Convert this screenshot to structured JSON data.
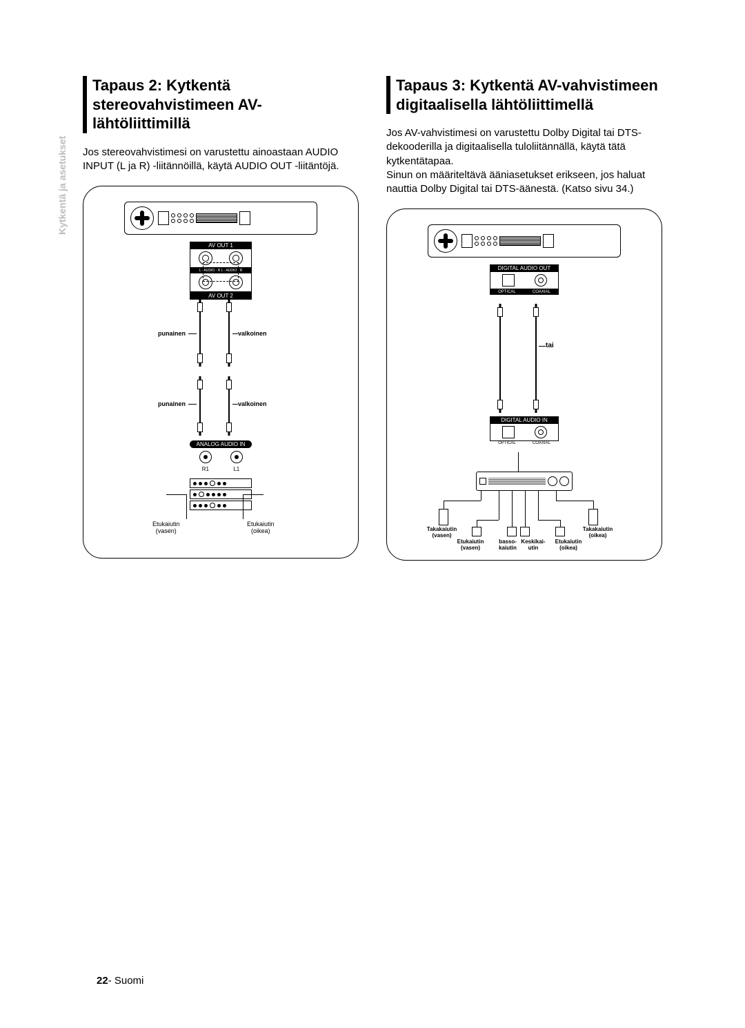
{
  "sideLabel": "Kytkentä ja asetukset",
  "left": {
    "heading": "Tapaus 2: Kytkentä stereovahvistimeen AV-lähtöliittimillä",
    "body": "Jos stereovahvistimesi on varustettu ainoastaan AUDIO INPUT (L ja R) -liitännöillä, käytä AUDIO OUT -liitäntöjä.",
    "diagram": {
      "avOut1": "AV OUT 1",
      "lrAudioOut": "L   - AUDIO -   R          L  - AUDIO -  R",
      "avOut2": "AV OUT 2",
      "red": "punainen",
      "white": "valkoinen",
      "analogIn": "ANALOG    AUDIO IN",
      "r1": "R1",
      "l1": "L1",
      "frontL": "Etukaiutin\\n(vasen)",
      "frontR": "Etukaiutin\\n(oikea)"
    }
  },
  "right": {
    "heading": "Tapaus 3: Kytkentä AV-vahvistimeen digitaalisella lähtöliittimellä",
    "body": "Jos AV-vahvistimesi on varustettu Dolby Digital tai DTS-dekooderilla ja digitaalisella tuloliitännällä, käytä tätä kytkentätapaa.\\nSinun on määriteltävä ääniasetukset erikseen, jos haluat nauttia Dolby Digital tai DTS-äänestä. (Katso sivu 34.)",
    "diagram": {
      "digitalOut": "DIGITAL AUDIO OUT",
      "optical": "OPTICAL",
      "coaxial": "COAXIAL",
      "tai": "tai",
      "digitalIn": "DIGITAL AUDIO IN",
      "opticalIn": "OPTICAL",
      "coaxialIn": "COAXIAL",
      "rearL": "Takakaiutin\\n(vasen)",
      "rearR": "Takakaiutin\\n(oikea)",
      "frontL": "Etukaiutin\\n(vasen)",
      "frontR": "Etukaiutin\\n(oikea)",
      "sub": "basso-\\nkaiutin",
      "center": "Keskikai-\\nutin"
    }
  },
  "pageNumber": "22",
  "pageLang": "- Suomi"
}
